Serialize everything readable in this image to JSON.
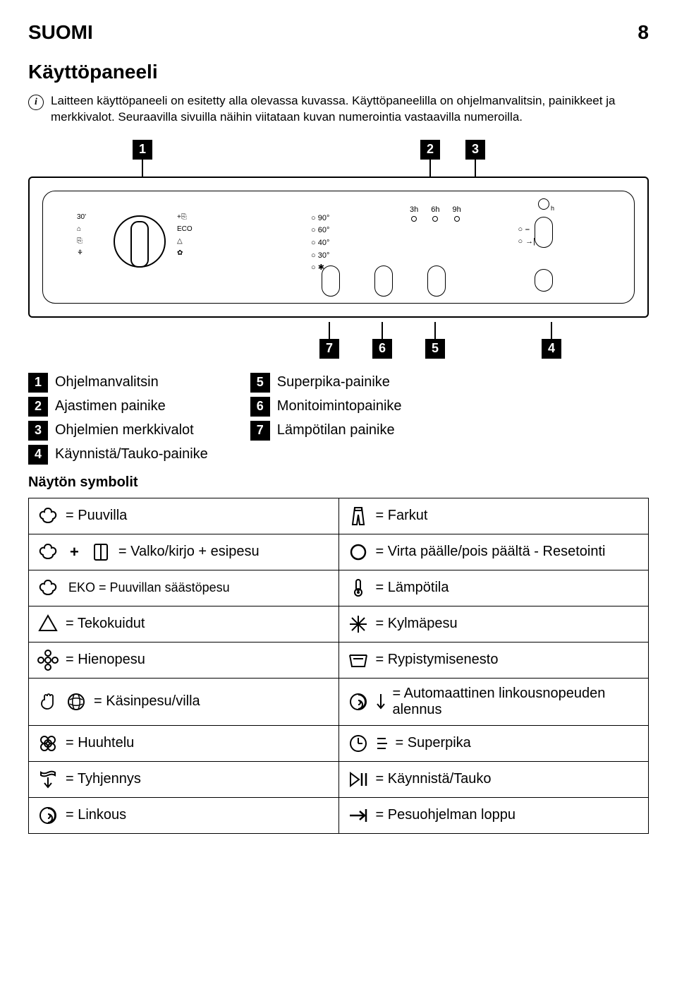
{
  "header": {
    "lang": "SUOMI",
    "page": "8"
  },
  "title": "Käyttöpaneeli",
  "intro": "Laitteen käyttöpaneeli on esitetty alla olevassa kuvassa. Käyttöpaneelilla on ohjelmanvalitsin, painikkeet ja merkkivalot. Seuraavilla sivuilla näihin viitataan kuvan numerointia vastaavilla numeroilla.",
  "panel": {
    "temps": [
      "90°",
      "60°",
      "40°",
      "30°",
      "✱"
    ],
    "times": [
      "3h",
      "6h",
      "9h"
    ],
    "ind": [
      "⎯",
      "→|"
    ],
    "dial_left": [
      "30'",
      "⌂",
      "⎘",
      "⚘"
    ],
    "dial_right": [
      "+⎘",
      "ECO",
      "△",
      "✿"
    ]
  },
  "callouts_top": [
    "1",
    "2",
    "3"
  ],
  "callouts_bot": [
    "7",
    "6",
    "5",
    "4"
  ],
  "legend_left": [
    {
      "n": "1",
      "t": "Ohjelmanvalitsin"
    },
    {
      "n": "2",
      "t": "Ajastimen painike"
    },
    {
      "n": "3",
      "t": "Ohjelmien merkkivalot"
    },
    {
      "n": "4",
      "t": "Käynnistä/Tauko-painike"
    }
  ],
  "legend_right": [
    {
      "n": "5",
      "t": "Superpika-painike"
    },
    {
      "n": "6",
      "t": "Monitoimintopainike"
    },
    {
      "n": "7",
      "t": "Lämpötilan painike"
    }
  ],
  "subhead": "Näytön symbolit",
  "rows": [
    {
      "l": {
        "icon": "cotton",
        "text": "= Puuvilla"
      },
      "r": {
        "icon": "jeans",
        "text": "= Farkut"
      }
    },
    {
      "l": {
        "icon": "cotton-prewash",
        "text": "= Valko/kirjo + esipesu"
      },
      "r": {
        "icon": "power",
        "text": "= Virta päälle/pois päältä - Resetointi"
      }
    },
    {
      "l": {
        "icon": "cotton-eko",
        "text": "EKO = Puuvillan säästöpesu"
      },
      "r": {
        "icon": "thermo",
        "text": "= Lämpötila"
      }
    },
    {
      "l": {
        "icon": "synth",
        "text": "= Tekokuidut"
      },
      "r": {
        "icon": "snow",
        "text": "= Kylmäpesu"
      }
    },
    {
      "l": {
        "icon": "delicate",
        "text": "= Hienopesu"
      },
      "r": {
        "icon": "basin",
        "text": "= Rypistymisenesto"
      }
    },
    {
      "l": {
        "icon": "handwool",
        "text": "= Käsinpesu/villa"
      },
      "r": {
        "icon": "spin-auto",
        "text": "= Automaattinen linkousnopeuden alennus"
      }
    },
    {
      "l": {
        "icon": "rinse",
        "text": "= Huuhtelu"
      },
      "r": {
        "icon": "clock-fast",
        "text": "= Superpika"
      }
    },
    {
      "l": {
        "icon": "drain",
        "text": "= Tyhjennys"
      },
      "r": {
        "icon": "playpause",
        "text": "= Käynnistä/Tauko"
      }
    },
    {
      "l": {
        "icon": "spin",
        "text": "= Linkous"
      },
      "r": {
        "icon": "end",
        "text": "= Pesuohjelman loppu"
      }
    }
  ]
}
